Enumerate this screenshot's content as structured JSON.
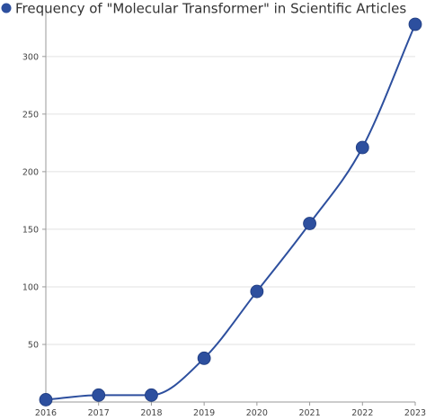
{
  "chart_data": {
    "type": "line",
    "title": "",
    "xlabel": "",
    "ylabel": "",
    "categories": [
      "2016",
      "2017",
      "2018",
      "2019",
      "2020",
      "2021",
      "2022",
      "2023"
    ],
    "series": [
      {
        "name": "Frequency of \"Molecular Transformer\" in Scientific Articles",
        "values": [
          2,
          6,
          6,
          38,
          96,
          155,
          221,
          328
        ],
        "color": "#2d4f9e"
      }
    ],
    "yticks": [
      50,
      100,
      150,
      200,
      250,
      300
    ],
    "ylim": [
      0,
      335
    ],
    "grid": "horizontal",
    "legend_position": "top-left",
    "smooth": true
  }
}
